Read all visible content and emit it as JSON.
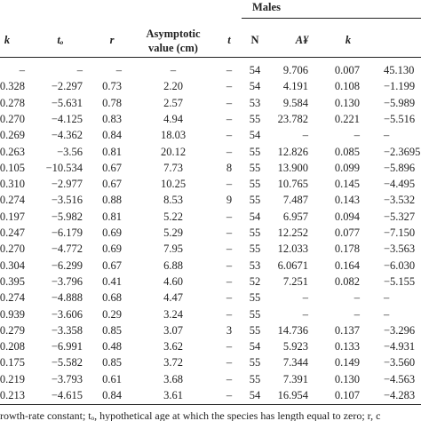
{
  "table": {
    "group_header": "Males",
    "headers": [
      "k",
      "tₒ",
      "r",
      "Asymptotic value (cm)",
      "t",
      "N",
      "A¥",
      "k"
    ],
    "rows": [
      [
        "–",
        "–",
        "–",
        "–",
        "–",
        "54",
        "9.706",
        "0.007",
        "45.130"
      ],
      [
        "0.328",
        "−2.297",
        "0.73",
        "2.20",
        "–",
        "54",
        "4.191",
        "0.108",
        "−1.199"
      ],
      [
        "0.278",
        "−5.631",
        "0.78",
        "2.57",
        "–",
        "53",
        "9.584",
        "0.130",
        "−5.989"
      ],
      [
        "0.270",
        "−4.125",
        "0.83",
        "4.94",
        "–",
        "55",
        "23.782",
        "0.221",
        "−5.516"
      ],
      [
        "0.269",
        "−4.362",
        "0.84",
        "18.03",
        "–",
        "54",
        "–",
        "–",
        "–"
      ],
      [
        "0.263",
        "−3.56",
        "0.81",
        "20.12",
        "–",
        "55",
        "12.826",
        "0.085",
        "−2.3695"
      ],
      [
        "0.105",
        "−10.534",
        "0.67",
        "7.73",
        "8",
        "55",
        "13.900",
        "0.099",
        "−5.896"
      ],
      [
        "0.310",
        "−2.977",
        "0.67",
        "10.25",
        "–",
        "55",
        "10.765",
        "0.145",
        "−4.495"
      ],
      [
        "0.274",
        "−3.516",
        "0.88",
        "8.53",
        "9",
        "55",
        "7.487",
        "0.143",
        "−3.532"
      ],
      [
        "0.197",
        "−5.982",
        "0.81",
        "5.22",
        "–",
        "54",
        "6.957",
        "0.094",
        "−5.327"
      ],
      [
        "0.247",
        "−6.179",
        "0.69",
        "5.29",
        "–",
        "55",
        "12.252",
        "0.077",
        "−7.150"
      ],
      [
        "0.270",
        "−4.772",
        "0.69",
        "7.95",
        "–",
        "55",
        "12.033",
        "0.178",
        "−3.563"
      ],
      [
        "0.304",
        "−6.299",
        "0.67",
        "6.88",
        "–",
        "53",
        "6.0671",
        "0.164",
        "−6.030"
      ],
      [
        "0.395",
        "−3.796",
        "0.41",
        "4.60",
        "–",
        "52",
        "7.251",
        "0.082",
        "−5.155"
      ],
      [
        "0.274",
        "−4.888",
        "0.68",
        "4.47",
        "–",
        "55",
        "–",
        "–",
        "–"
      ],
      [
        "0.939",
        "−3.606",
        "0.29",
        "3.24",
        "–",
        "55",
        "–",
        "–",
        "–"
      ],
      [
        "0.279",
        "−3.358",
        "0.85",
        "3.07",
        "3",
        "55",
        "14.736",
        "0.137",
        "−3.296"
      ],
      [
        "0.208",
        "−6.991",
        "0.48",
        "3.62",
        "–",
        "54",
        "5.923",
        "0.133",
        "−4.931"
      ],
      [
        "0.175",
        "−5.582",
        "0.85",
        "3.72",
        "–",
        "55",
        "7.344",
        "0.149",
        "−3.560"
      ],
      [
        "0.219",
        "−3.793",
        "0.61",
        "3.68",
        "–",
        "55",
        "7.391",
        "0.130",
        "−4.563"
      ],
      [
        "0.213",
        "−4.615",
        "0.84",
        "3.61",
        "–",
        "54",
        "16.954",
        "0.107",
        "−4.283"
      ]
    ],
    "footnote": "rowth-rate constant; tₒ, hypothetical age at which the species has length equal to zero; r, c"
  }
}
